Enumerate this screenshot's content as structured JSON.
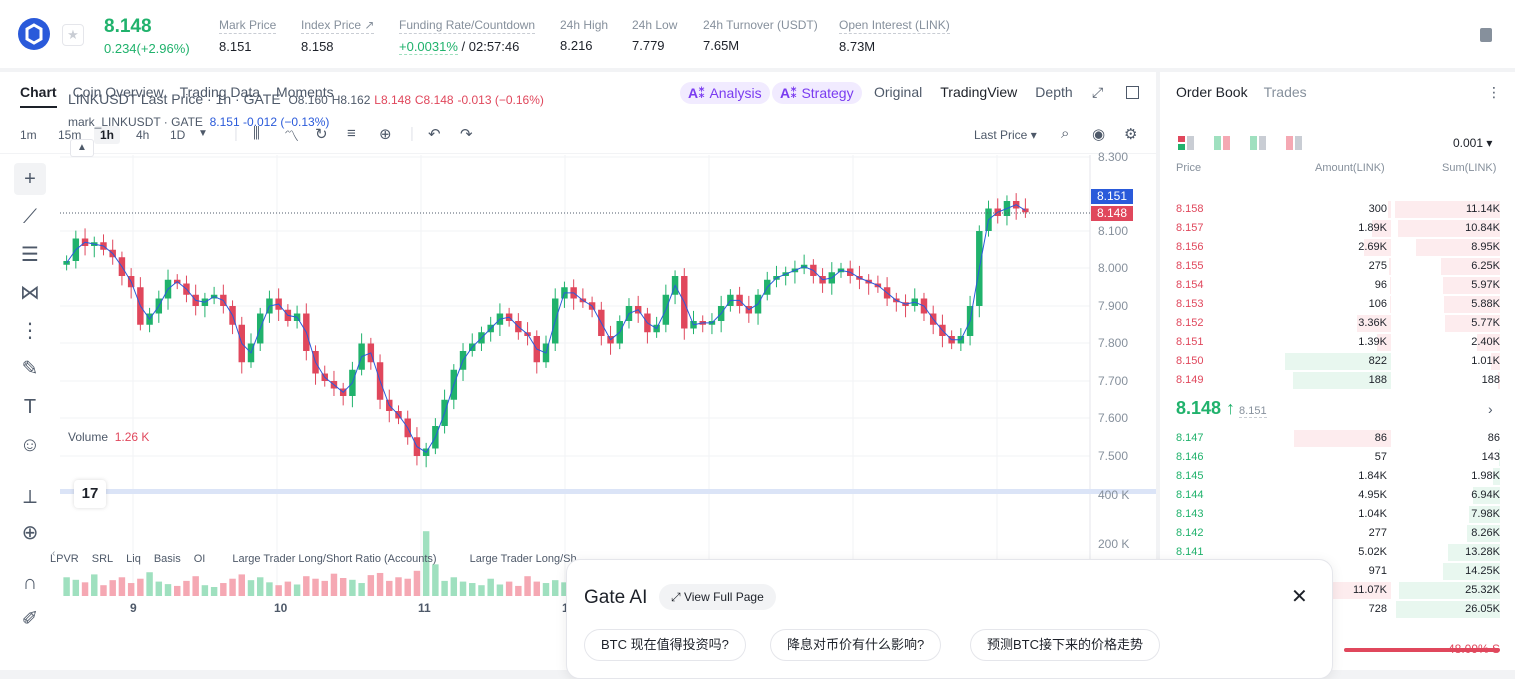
{
  "ticker": {
    "last_price": "8.148",
    "change": "0.234(+2.96%)",
    "stats": [
      {
        "label": "Mark Price",
        "value": "8.151"
      },
      {
        "label": "Index Price ↗",
        "value": "8.158"
      },
      {
        "label": "Funding Rate/Countdown",
        "value_green": "+0.0031%",
        "value": " / 02:57:46"
      },
      {
        "label": "24h High",
        "value": "8.216"
      },
      {
        "label": "24h Low",
        "value": "7.779"
      },
      {
        "label": "24h Turnover (USDT)",
        "value": "7.65M"
      },
      {
        "label": "Open Interest (LINK)",
        "value": "8.73M"
      }
    ]
  },
  "chart_tabs": [
    "Chart",
    "Coin Overview",
    "Trading Data",
    "Moments"
  ],
  "ai_pills": [
    {
      "icon": "A⁑",
      "label": "Analysis"
    },
    {
      "icon": "A⁑",
      "label": "Strategy"
    }
  ],
  "view_tabs": [
    "Original",
    "TradingView",
    "Depth"
  ],
  "timeframes": [
    "1m",
    "15m",
    "1h",
    "4h",
    "1D"
  ],
  "price_type": "Last Price ▾",
  "legend": {
    "symbol": "LINKUSDT Last Price · 1h · GATE",
    "o": "O8.160",
    "h": "H8.162",
    "l": "L8.148",
    "c": "C8.148",
    "chg": "-0.013 (−0.16%)",
    "mark_name": "mark_LINKUSDT · GATE",
    "mark_val": "8.151",
    "mark_chg": "-0.012 (−0.13%)"
  },
  "volume_legend": {
    "label": "Volume",
    "value": "1.26 K"
  },
  "tv_logo": "17",
  "indicators": [
    "LPVR",
    "SRL",
    "Liq",
    "Basis",
    "OI",
    "Large Trader Long/Short Ratio (Accounts)",
    "Large Trader Long/Sh"
  ],
  "chart_data": {
    "type": "candlestick",
    "symbol": "LINKUSDT",
    "interval": "1h",
    "y_ticks": [
      "8.300",
      "8.100",
      "8.000",
      "7.900",
      "7.800",
      "7.700",
      "7.600",
      "7.500"
    ],
    "y_range": [
      7.45,
      8.3
    ],
    "volume_ticks": [
      "400 K",
      "200 K"
    ],
    "x_ticks": [
      "9",
      "10",
      "11",
      "1"
    ],
    "price_labels": {
      "mark": "8.151",
      "last": "8.148"
    },
    "close_path": [
      8.02,
      8.08,
      8.06,
      8.07,
      8.05,
      8.03,
      7.98,
      7.95,
      7.85,
      7.88,
      7.92,
      7.97,
      7.96,
      7.93,
      7.9,
      7.92,
      7.93,
      7.9,
      7.85,
      7.75,
      7.8,
      7.88,
      7.92,
      7.89,
      7.86,
      7.88,
      7.78,
      7.72,
      7.7,
      7.68,
      7.66,
      7.73,
      7.8,
      7.75,
      7.65,
      7.62,
      7.6,
      7.55,
      7.5,
      7.52,
      7.58,
      7.65,
      7.73,
      7.78,
      7.8,
      7.83,
      7.85,
      7.88,
      7.86,
      7.83,
      7.82,
      7.75,
      7.8,
      7.92,
      7.95,
      7.92,
      7.91,
      7.89,
      7.82,
      7.8,
      7.86,
      7.9,
      7.88,
      7.83,
      7.85,
      7.93,
      7.98,
      7.84,
      7.86,
      7.85,
      7.86,
      7.9,
      7.93,
      7.9,
      7.88,
      7.93,
      7.97,
      7.98,
      7.99,
      8.0,
      8.01,
      7.98,
      7.96,
      7.99,
      8.0,
      7.98,
      7.97,
      7.96,
      7.95,
      7.92,
      7.91,
      7.9,
      7.92,
      7.88,
      7.85,
      7.82,
      7.8,
      7.82,
      7.9,
      8.1,
      8.16,
      8.14,
      8.18,
      8.16,
      8.15
    ],
    "volumes": [
      52,
      45,
      38,
      60,
      30,
      44,
      52,
      36,
      48,
      66,
      40,
      33,
      28,
      42,
      55,
      30,
      25,
      36,
      48,
      60,
      44,
      52,
      38,
      30,
      40,
      32,
      55,
      48,
      42,
      62,
      50,
      45,
      36,
      58,
      64,
      42,
      52,
      48,
      70,
      180,
      88,
      42,
      52,
      40,
      36,
      30,
      48,
      32,
      40,
      28,
      55,
      40,
      36,
      44,
      38,
      48,
      30,
      52,
      34,
      40,
      28,
      36,
      40,
      30,
      44,
      52,
      38,
      48,
      32,
      40,
      30,
      26,
      36,
      42,
      30,
      28,
      40,
      48,
      36,
      30,
      40,
      34,
      38,
      44,
      30,
      36,
      40,
      26,
      34,
      28,
      38,
      44,
      32,
      40,
      36,
      30,
      48,
      54,
      60,
      42,
      38,
      46,
      50,
      38,
      44
    ]
  },
  "orderbook": {
    "tabs": [
      "Order Book",
      "Trades"
    ],
    "precision": "0.001 ▾",
    "headers": {
      "price": "Price",
      "amount": "Amount(LINK)",
      "sum": "Sum(LINK)"
    },
    "asks": [
      {
        "price": "8.158",
        "amount": "300",
        "sum": "11.14K",
        "a": 0.03,
        "s": 1.0
      },
      {
        "price": "8.157",
        "amount": "1.89K",
        "sum": "10.84K",
        "a": 0.17,
        "s": 0.97
      },
      {
        "price": "8.156",
        "amount": "2.69K",
        "sum": "8.95K",
        "a": 0.24,
        "s": 0.8
      },
      {
        "price": "8.155",
        "amount": "275",
        "sum": "6.25K",
        "a": 0.02,
        "s": 0.56
      },
      {
        "price": "8.154",
        "amount": "96",
        "sum": "5.97K",
        "a": 0.01,
        "s": 0.54
      },
      {
        "price": "8.153",
        "amount": "106",
        "sum": "5.88K",
        "a": 0.01,
        "s": 0.53
      },
      {
        "price": "8.152",
        "amount": "3.36K",
        "sum": "5.77K",
        "a": 0.3,
        "s": 0.52
      },
      {
        "price": "8.151",
        "amount": "1.39K",
        "sum": "2.40K",
        "a": 0.12,
        "s": 0.22
      },
      {
        "price": "8.150",
        "amount": "822",
        "sum": "1.01K",
        "a": 0.93,
        "s": 0.09
      },
      {
        "price": "8.149",
        "amount": "188",
        "sum": "188",
        "a": 0.86,
        "s": 0.02
      }
    ],
    "mid": {
      "price": "8.148 ↑",
      "mark": "8.151"
    },
    "bids": [
      {
        "price": "8.147",
        "amount": "86",
        "sum": "86",
        "a": 0.85,
        "s": 0.0
      },
      {
        "price": "8.146",
        "amount": "57",
        "sum": "143",
        "a": 0.0,
        "s": 0.01
      },
      {
        "price": "8.145",
        "amount": "1.84K",
        "sum": "1.98K",
        "a": 0.0,
        "s": 0.07
      },
      {
        "price": "8.144",
        "amount": "4.95K",
        "sum": "6.94K",
        "a": 0.0,
        "s": 0.26
      },
      {
        "price": "8.143",
        "amount": "1.04K",
        "sum": "7.98K",
        "a": 0.0,
        "s": 0.3
      },
      {
        "price": "8.142",
        "amount": "277",
        "sum": "8.26K",
        "a": 0.0,
        "s": 0.31
      },
      {
        "price": "8.141",
        "amount": "5.02K",
        "sum": "13.28K",
        "a": 0.0,
        "s": 0.5
      },
      {
        "price": "",
        "amount": "971",
        "sum": "14.25K",
        "a": 0.0,
        "s": 0.54
      },
      {
        "price": "",
        "amount": "11.07K",
        "sum": "25.32K",
        "a": 0.55,
        "s": 0.96
      },
      {
        "price": "",
        "amount": "728",
        "sum": "26.05K",
        "a": 0.0,
        "s": 0.99
      }
    ],
    "sell_ratio": "48.09% S"
  },
  "gate_ai": {
    "title": "Gate AI",
    "view_full": "View Full Page",
    "questions": [
      "BTC 现在值得投资吗?",
      "降息对币价有什么影响?",
      "预测BTC接下来的价格走势"
    ]
  },
  "colors": {
    "up": "#20b26c",
    "down": "#e0475c",
    "accent": "#2a5ada"
  }
}
